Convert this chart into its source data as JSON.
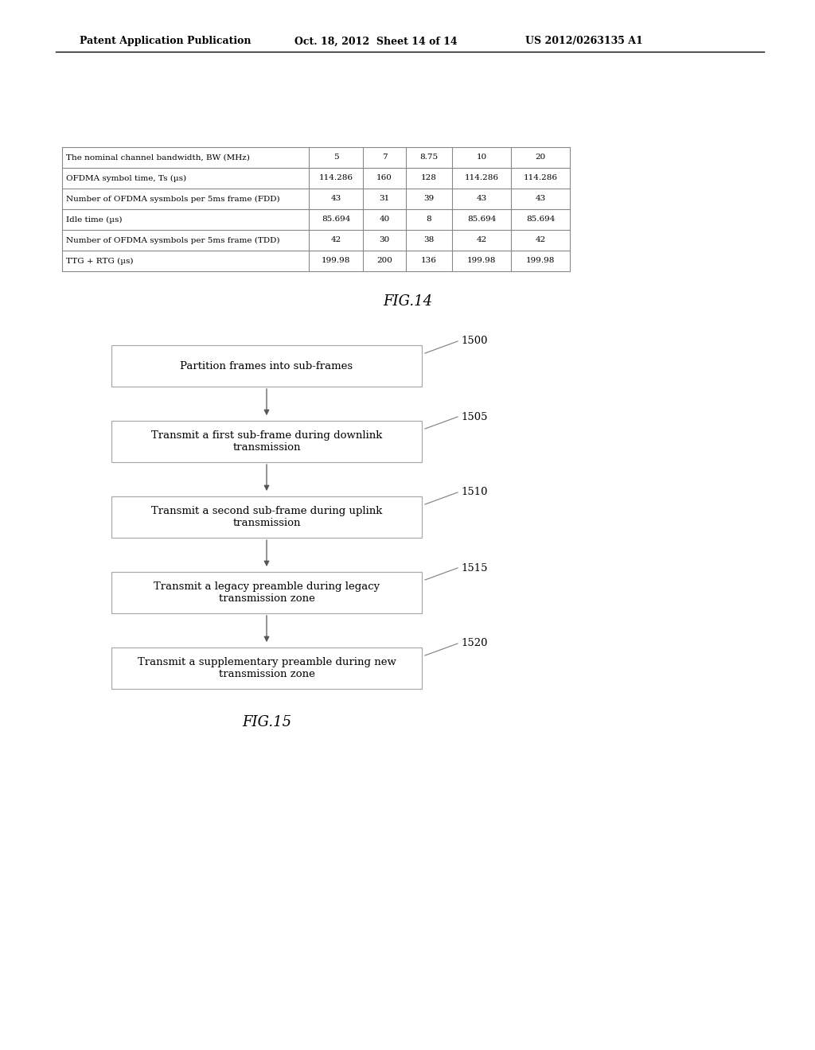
{
  "header_left": "Patent Application Publication",
  "header_mid": "Oct. 18, 2012  Sheet 14 of 14",
  "header_right": "US 2012/0263135 A1",
  "table": {
    "rows": [
      [
        "The nominal channel bandwidth, BW (MHz)",
        "5",
        "7",
        "8.75",
        "10",
        "20"
      ],
      [
        "OFDMA symbol time, Ts (µs)",
        "114.286",
        "160",
        "128",
        "114.286",
        "114.286"
      ],
      [
        "Number of OFDMA sysmbols per 5ms frame (FDD)",
        "43",
        "31",
        "39",
        "43",
        "43"
      ],
      [
        "Idle time (µs)",
        "85.694",
        "40",
        "8",
        "85.694",
        "85.694"
      ],
      [
        "Number of OFDMA sysmbols per 5ms frame (TDD)",
        "42",
        "30",
        "38",
        "42",
        "42"
      ],
      [
        "TTG + RTG (µs)",
        "199.98",
        "200",
        "136",
        "199.98",
        "199.98"
      ]
    ]
  },
  "fig14_label": "FIG.14",
  "flowchart_boxes": [
    {
      "label": "Partition frames into sub-frames",
      "ref": "1500"
    },
    {
      "label": "Transmit a first sub-frame during downlink\ntransmission",
      "ref": "1505"
    },
    {
      "label": "Transmit a second sub-frame during uplink\ntransmission",
      "ref": "1510"
    },
    {
      "label": "Transmit a legacy preamble during legacy\ntransmission zone",
      "ref": "1515"
    },
    {
      "label": "Transmit a supplementary preamble during new\ntransmission zone",
      "ref": "1520"
    }
  ],
  "fig15_label": "FIG.15",
  "bg_color": "#ffffff",
  "box_edge_color": "#aaaaaa",
  "text_color": "#000000",
  "arrow_color": "#555555",
  "header_line_color": "#000000",
  "table_line_color": "#888888"
}
